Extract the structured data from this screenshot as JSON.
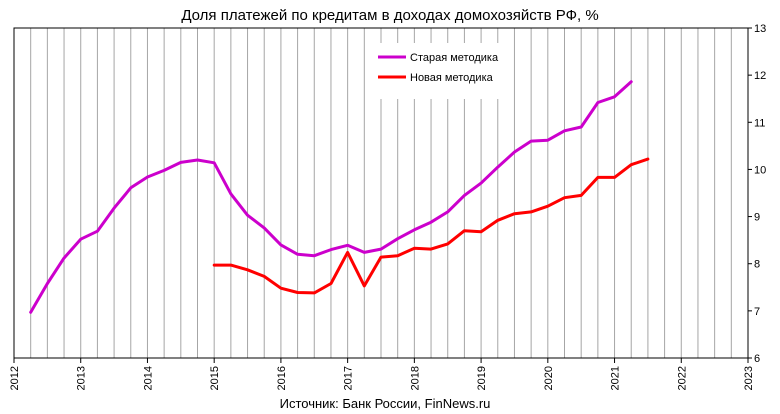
{
  "chart_data": {
    "type": "line",
    "title": "Доля платежей по кредитам в доходах домохозяйств РФ, %",
    "source": "Источник: Банк России, FinNews.ru",
    "xlabel": "",
    "ylabel": "",
    "xlim": [
      2012,
      2023
    ],
    "ylim": [
      6,
      13
    ],
    "x_ticks": [
      "2012",
      "2013",
      "2014",
      "2015",
      "2016",
      "2017",
      "2018",
      "2019",
      "2020",
      "2021",
      "2022",
      "2023"
    ],
    "y_ticks": [
      "6",
      "7",
      "8",
      "9",
      "10",
      "11",
      "12",
      "13"
    ],
    "grid": "vertical quarterly",
    "legend_position": "top-center",
    "series": [
      {
        "name": "Старая методика",
        "color": "#cc00cc",
        "x": [
          2012.25,
          2012.5,
          2012.75,
          2013.0,
          2013.25,
          2013.5,
          2013.75,
          2014.0,
          2014.25,
          2014.5,
          2014.75,
          2015.0,
          2015.25,
          2015.5,
          2015.75,
          2016.0,
          2016.25,
          2016.5,
          2016.75,
          2017.0,
          2017.25,
          2017.5,
          2017.75,
          2018.0,
          2018.25,
          2018.5,
          2018.75,
          2019.0,
          2019.25,
          2019.5,
          2019.75,
          2020.0,
          2020.25,
          2020.5,
          2020.75,
          2021.0,
          2021.25
        ],
        "y": [
          6.97,
          7.58,
          8.12,
          8.52,
          8.69,
          9.18,
          9.61,
          9.84,
          9.98,
          10.15,
          10.2,
          10.14,
          9.48,
          9.03,
          8.76,
          8.4,
          8.2,
          8.17,
          8.3,
          8.39,
          8.24,
          8.31,
          8.53,
          8.72,
          8.88,
          9.1,
          9.45,
          9.71,
          10.05,
          10.37,
          10.6,
          10.62,
          10.82,
          10.9,
          11.42,
          11.54,
          11.86
        ]
      },
      {
        "name": "Новая методика",
        "color": "#ff0000",
        "x": [
          2015.0,
          2015.25,
          2015.5,
          2015.75,
          2016.0,
          2016.25,
          2016.5,
          2016.75,
          2017.0,
          2017.25,
          2017.5,
          2017.75,
          2018.0,
          2018.25,
          2018.5,
          2018.75,
          2019.0,
          2019.25,
          2019.5,
          2019.75,
          2020.0,
          2020.25,
          2020.5,
          2020.75,
          2021.0,
          2021.25,
          2021.5
        ],
        "y": [
          7.97,
          7.97,
          7.87,
          7.73,
          7.48,
          7.39,
          7.38,
          7.58,
          8.24,
          7.53,
          8.14,
          8.17,
          8.33,
          8.31,
          8.42,
          8.7,
          8.68,
          8.92,
          9.06,
          9.1,
          9.22,
          9.4,
          9.45,
          9.83,
          9.83,
          10.1,
          10.22
        ]
      }
    ]
  }
}
